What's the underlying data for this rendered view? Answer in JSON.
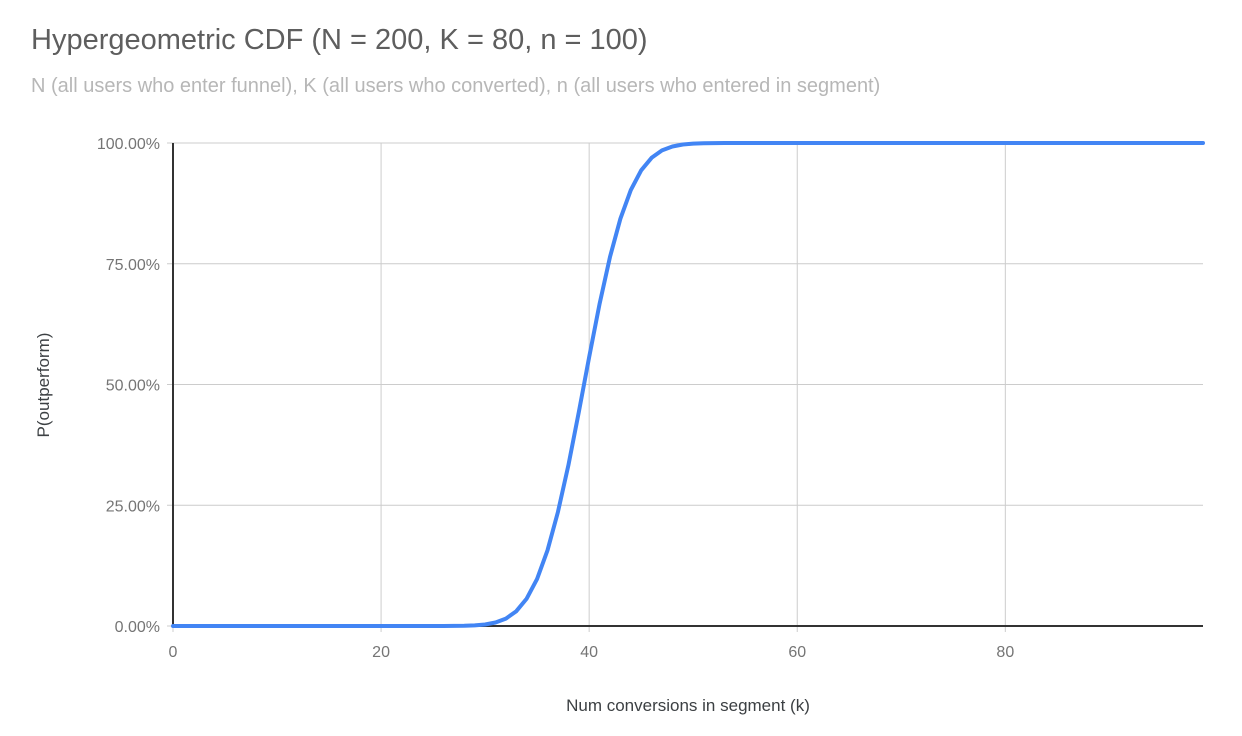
{
  "colors": {
    "line": "#4285f4",
    "grid": "#cccccc",
    "axis": "#333333",
    "title_text": "#5e5e5e",
    "subtitle_text": "#b7b7b7",
    "tick_text": "#757575",
    "axis_title_text": "#3c4043",
    "background": "#ffffff"
  },
  "chart_data": {
    "type": "line",
    "title": "Hypergeometric CDF (N = 200, K = 80, n = 100)",
    "subtitle": "N (all users who enter funnel), K (all users who converted), n (all users who entered in segment)",
    "xlabel": "Num conversions in segment (k)",
    "ylabel": "P(outperform)",
    "xlim": [
      0,
      99
    ],
    "ylim": [
      0,
      1
    ],
    "x_tick_values": [
      0,
      20,
      40,
      60,
      80
    ],
    "y_tick_values": [
      0,
      0.25,
      0.5,
      0.75,
      1
    ],
    "y_tick_labels": [
      "0.00%",
      "25.00%",
      "50.00%",
      "75.00%",
      "100.00%"
    ],
    "x_tick_labels": [
      "0",
      "20",
      "40",
      "60",
      "80"
    ],
    "grid": true,
    "legend": "none",
    "line_color": "#4285f4",
    "line_width": 4,
    "series": [
      {
        "name": "P(outperform)",
        "x": [
          0,
          1,
          2,
          3,
          4,
          5,
          6,
          7,
          8,
          9,
          10,
          11,
          12,
          13,
          14,
          15,
          16,
          17,
          18,
          19,
          20,
          21,
          22,
          23,
          24,
          25,
          26,
          27,
          28,
          29,
          30,
          31,
          32,
          33,
          34,
          35,
          36,
          37,
          38,
          39,
          40,
          41,
          42,
          43,
          44,
          45,
          46,
          47,
          48,
          49,
          50,
          51,
          52,
          53,
          54,
          55,
          56,
          57,
          58,
          59,
          60,
          61,
          62,
          63,
          64,
          65,
          66,
          67,
          68,
          69,
          70,
          71,
          72,
          73,
          74,
          75,
          76,
          77,
          78,
          79,
          80,
          81,
          82,
          83,
          84,
          85,
          86,
          87,
          88,
          89,
          90,
          91,
          92,
          93,
          94,
          95,
          96,
          97,
          98,
          99
        ],
        "y": [
          0,
          0,
          0,
          0,
          0,
          0,
          0,
          0,
          0,
          0,
          0,
          0,
          0,
          0,
          0,
          0,
          0,
          0,
          0,
          0,
          0,
          0,
          0,
          0,
          0,
          1e-05,
          5e-05,
          0.00016,
          0.00046,
          0.00125,
          0.0031,
          0.0072,
          0.0154,
          0.0307,
          0.0567,
          0.0975,
          0.1568,
          0.2358,
          0.3329,
          0.4428,
          0.5572,
          0.6671,
          0.7642,
          0.8432,
          0.9025,
          0.9434,
          0.9693,
          0.9846,
          0.9928,
          0.9969,
          0.9988,
          0.9995,
          0.9998,
          0.9999,
          1,
          1,
          1,
          1,
          1,
          1,
          1,
          1,
          1,
          1,
          1,
          1,
          1,
          1,
          1,
          1,
          1,
          1,
          1,
          1,
          1,
          1,
          1,
          1,
          1,
          1,
          1,
          1,
          1,
          1,
          1,
          1,
          1,
          1,
          1,
          1,
          1,
          1,
          1,
          1,
          1,
          1,
          1,
          1,
          1,
          1
        ]
      }
    ]
  }
}
